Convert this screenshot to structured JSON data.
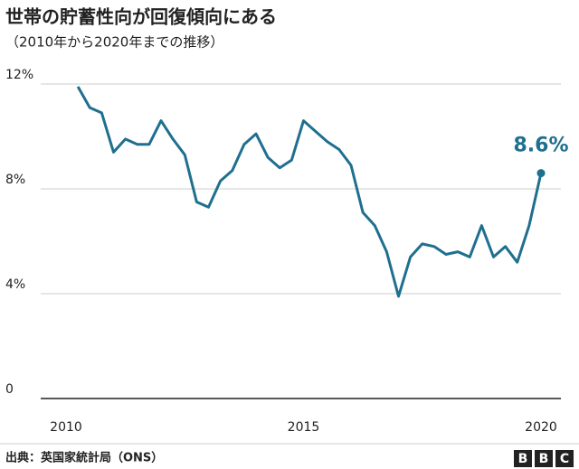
{
  "chart_data": {
    "type": "line",
    "title": "世帯の貯蓄性向が回復傾向にある",
    "subtitle": "（2010年から2020年までの推移）",
    "x": [
      2010.25,
      2010.5,
      2010.75,
      2011,
      2011.25,
      2011.5,
      2011.75,
      2012,
      2012.25,
      2012.5,
      2012.75,
      2013,
      2013.25,
      2013.5,
      2013.75,
      2014,
      2014.25,
      2014.5,
      2014.75,
      2015,
      2015.25,
      2015.5,
      2015.75,
      2016,
      2016.25,
      2016.5,
      2016.75,
      2017,
      2017.25,
      2017.5,
      2017.75,
      2018,
      2018.25,
      2018.5,
      2018.75,
      2019,
      2019.25,
      2019.5,
      2019.75,
      2020
    ],
    "series": [
      {
        "color": "#1f6f8f",
        "values": [
          11.9,
          11.1,
          10.9,
          9.4,
          9.9,
          9.7,
          9.7,
          10.6,
          9.9,
          9.3,
          7.5,
          7.3,
          8.3,
          8.7,
          9.7,
          10.1,
          9.2,
          8.8,
          9.1,
          10.6,
          10.2,
          9.8,
          9.5,
          8.9,
          7.1,
          6.6,
          5.6,
          3.9,
          5.4,
          5.9,
          5.8,
          5.5,
          5.6,
          5.4,
          6.6,
          5.4,
          5.8,
          5.2,
          6.6,
          8.6
        ]
      }
    ],
    "highlight": {
      "label": "8.6%",
      "x": 2020,
      "value": 8.6
    },
    "xlim": [
      2009.7,
      2020.5
    ],
    "xticks": [
      2010,
      2015,
      2020
    ],
    "ylim": [
      0,
      12
    ],
    "yticks": [
      0,
      {
        "value": 4,
        "label": "4%"
      },
      {
        "value": 8,
        "label": "8%"
      },
      {
        "value": 12,
        "label": "12%"
      }
    ],
    "grid": true
  },
  "footer": {
    "source": "出典：英国家統計局（ONS）",
    "logo_letters": [
      "B",
      "B",
      "C"
    ]
  }
}
